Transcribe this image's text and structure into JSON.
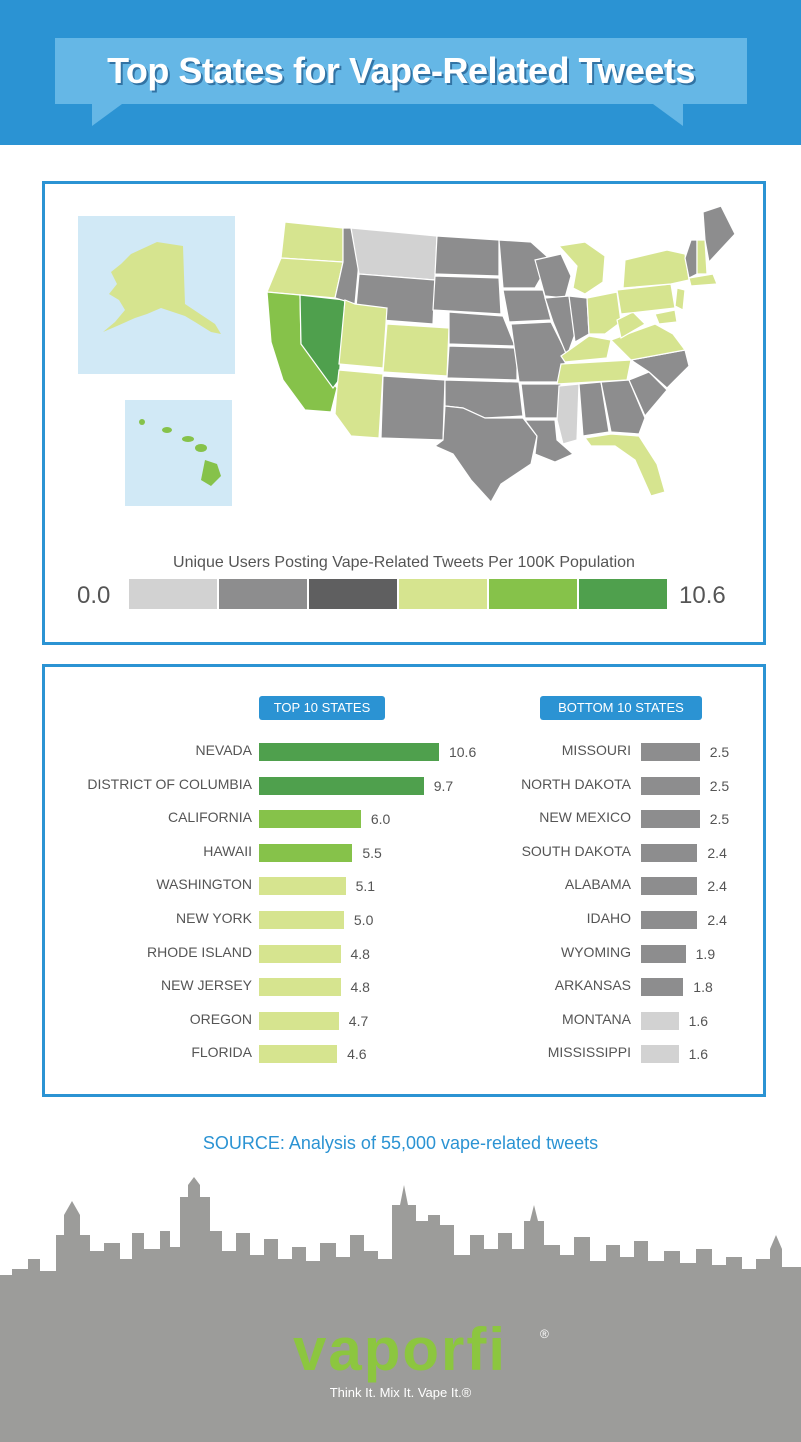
{
  "title": "Top States for Vape-Related Tweets",
  "colors": {
    "accent": "#2b93d3",
    "scale": [
      "#d2d2d2",
      "#8d8d8e",
      "#5f5f60",
      "#d6e48f",
      "#86c24a",
      "#4fa04d"
    ],
    "water": "#d1e9f6",
    "skyline": "#9c9c9a"
  },
  "map": {
    "legend_title": "Unique Users Posting Vape-Related Tweets Per 100K Population",
    "legend_min": "0.0",
    "legend_max": "10.6"
  },
  "chart_data": [
    {
      "type": "bar",
      "title": "TOP 10 STATES",
      "categories": [
        "NEVADA",
        "DISTRICT OF COLUMBIA",
        "CALIFORNIA",
        "HAWAII",
        "WASHINGTON",
        "NEW YORK",
        "RHODE ISLAND",
        "NEW JERSEY",
        "OREGON",
        "FLORIDA"
      ],
      "values": [
        10.6,
        9.7,
        6.0,
        5.5,
        5.1,
        5.0,
        4.8,
        4.8,
        4.7,
        4.6
      ],
      "labels": [
        "10.6",
        "9.7",
        "6.0",
        "5.5",
        "5.1",
        "5.0",
        "4.8",
        "4.8",
        "4.7",
        "4.6"
      ],
      "colors": [
        "#4fa04d",
        "#4fa04d",
        "#86c24a",
        "#86c24a",
        "#d6e48f",
        "#d6e48f",
        "#d6e48f",
        "#d6e48f",
        "#d6e48f",
        "#d6e48f"
      ],
      "orientation": "horizontal"
    },
    {
      "type": "bar",
      "title": "BOTTOM 10 STATES",
      "categories": [
        "MISSOURI",
        "NORTH DAKOTA",
        "NEW MEXICO",
        "SOUTH DAKOTA",
        "ALABAMA",
        "IDAHO",
        "WYOMING",
        "ARKANSAS",
        "MONTANA",
        "MISSISSIPPI"
      ],
      "values": [
        2.5,
        2.5,
        2.5,
        2.4,
        2.4,
        2.4,
        1.9,
        1.8,
        1.6,
        1.6
      ],
      "labels": [
        "2.5",
        "2.5",
        "2.5",
        "2.4",
        "2.4",
        "2.4",
        "1.9",
        "1.8",
        "1.6",
        "1.6"
      ],
      "colors": [
        "#8d8d8e",
        "#8d8d8e",
        "#8d8d8e",
        "#8d8d8e",
        "#8d8d8e",
        "#8d8d8e",
        "#8d8d8e",
        "#8d8d8e",
        "#d2d2d2",
        "#d2d2d2"
      ],
      "orientation": "horizontal"
    }
  ],
  "source": "SOURCE: Analysis of 55,000 vape-related tweets",
  "brand": {
    "logo_text": "vaporfi",
    "registered": "®",
    "tagline": "Think It. Mix It. Vape It.®"
  }
}
